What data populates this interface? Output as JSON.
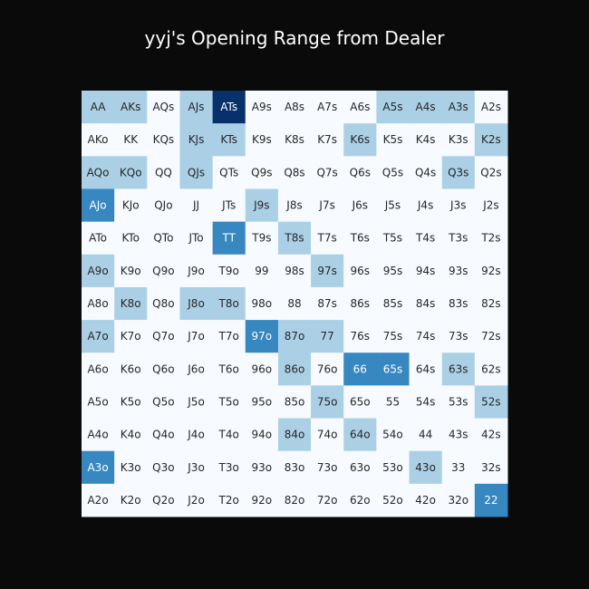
{
  "chart_data": {
    "type": "heatmap",
    "title": "yyj's Opening Range from Dealer",
    "rows": 13,
    "cols": 13,
    "labels": [
      [
        "AA",
        "AKs",
        "AQs",
        "AJs",
        "ATs",
        "A9s",
        "A8s",
        "A7s",
        "A6s",
        "A5s",
        "A4s",
        "A3s",
        "A2s"
      ],
      [
        "AKo",
        "KK",
        "KQs",
        "KJs",
        "KTs",
        "K9s",
        "K8s",
        "K7s",
        "K6s",
        "K5s",
        "K4s",
        "K3s",
        "K2s"
      ],
      [
        "AQo",
        "KQo",
        "QQ",
        "QJs",
        "QTs",
        "Q9s",
        "Q8s",
        "Q7s",
        "Q6s",
        "Q5s",
        "Q4s",
        "Q3s",
        "Q2s"
      ],
      [
        "AJo",
        "KJo",
        "QJo",
        "JJ",
        "JTs",
        "J9s",
        "J8s",
        "J7s",
        "J6s",
        "J5s",
        "J4s",
        "J3s",
        "J2s"
      ],
      [
        "ATo",
        "KTo",
        "QTo",
        "JTo",
        "TT",
        "T9s",
        "T8s",
        "T7s",
        "T6s",
        "T5s",
        "T4s",
        "T3s",
        "T2s"
      ],
      [
        "A9o",
        "K9o",
        "Q9o",
        "J9o",
        "T9o",
        "99",
        "98s",
        "97s",
        "96s",
        "95s",
        "94s",
        "93s",
        "92s"
      ],
      [
        "A8o",
        "K8o",
        "Q8o",
        "J8o",
        "T8o",
        "98o",
        "88",
        "87s",
        "86s",
        "85s",
        "84s",
        "83s",
        "82s"
      ],
      [
        "A7o",
        "K7o",
        "Q7o",
        "J7o",
        "T7o",
        "97o",
        "87o",
        "77",
        "76s",
        "75s",
        "74s",
        "73s",
        "72s"
      ],
      [
        "A6o",
        "K6o",
        "Q6o",
        "J6o",
        "T6o",
        "96o",
        "86o",
        "76o",
        "66",
        "65s",
        "64s",
        "63s",
        "62s"
      ],
      [
        "A5o",
        "K5o",
        "Q5o",
        "J5o",
        "T5o",
        "95o",
        "85o",
        "75o",
        "65o",
        "55",
        "54s",
        "53s",
        "52s"
      ],
      [
        "A4o",
        "K4o",
        "Q4o",
        "J4o",
        "T4o",
        "94o",
        "84o",
        "74o",
        "64o",
        "54o",
        "44",
        "43s",
        "42s"
      ],
      [
        "A3o",
        "K3o",
        "Q3o",
        "J3o",
        "T3o",
        "93o",
        "83o",
        "73o",
        "63o",
        "53o",
        "43o",
        "33",
        "32s"
      ],
      [
        "A2o",
        "K2o",
        "Q2o",
        "J2o",
        "T2o",
        "92o",
        "82o",
        "72o",
        "62o",
        "52o",
        "42o",
        "32o",
        "22"
      ]
    ],
    "levels": [
      [
        1,
        1,
        0,
        1,
        3,
        0,
        0,
        0,
        0,
        1,
        1,
        1,
        0
      ],
      [
        0,
        0,
        0,
        1,
        1,
        0,
        0,
        0,
        1,
        0,
        0,
        0,
        1
      ],
      [
        1,
        1,
        0,
        1,
        0,
        0,
        0,
        0,
        0,
        0,
        0,
        1,
        0
      ],
      [
        2,
        0,
        0,
        0,
        0,
        1,
        0,
        0,
        0,
        0,
        0,
        0,
        0
      ],
      [
        0,
        0,
        0,
        0,
        2,
        0,
        1,
        0,
        0,
        0,
        0,
        0,
        0
      ],
      [
        1,
        0,
        0,
        0,
        0,
        0,
        0,
        1,
        0,
        0,
        0,
        0,
        0
      ],
      [
        0,
        1,
        0,
        1,
        1,
        0,
        0,
        0,
        0,
        0,
        0,
        0,
        0
      ],
      [
        1,
        0,
        0,
        0,
        0,
        2,
        1,
        1,
        0,
        0,
        0,
        0,
        0
      ],
      [
        0,
        0,
        0,
        0,
        0,
        0,
        1,
        0,
        2,
        2,
        0,
        1,
        0
      ],
      [
        0,
        0,
        0,
        0,
        0,
        0,
        0,
        1,
        0,
        0,
        0,
        0,
        1
      ],
      [
        0,
        0,
        0,
        0,
        0,
        0,
        1,
        0,
        1,
        0,
        0,
        0,
        0
      ],
      [
        2,
        0,
        0,
        0,
        0,
        0,
        0,
        0,
        0,
        0,
        1,
        0,
        0
      ],
      [
        0,
        0,
        0,
        0,
        0,
        0,
        0,
        0,
        0,
        0,
        0,
        0,
        2
      ]
    ],
    "level_colors": [
      "#f7fbff",
      "#abd0e6",
      "#3787c0",
      "#08306b"
    ],
    "level_text_colors": [
      "#262626",
      "#262626",
      "#ffffff",
      "#ffffff"
    ],
    "background_color": "#0a0a0a",
    "title_color": "#ffffff",
    "grid": false,
    "legend": "none"
  }
}
